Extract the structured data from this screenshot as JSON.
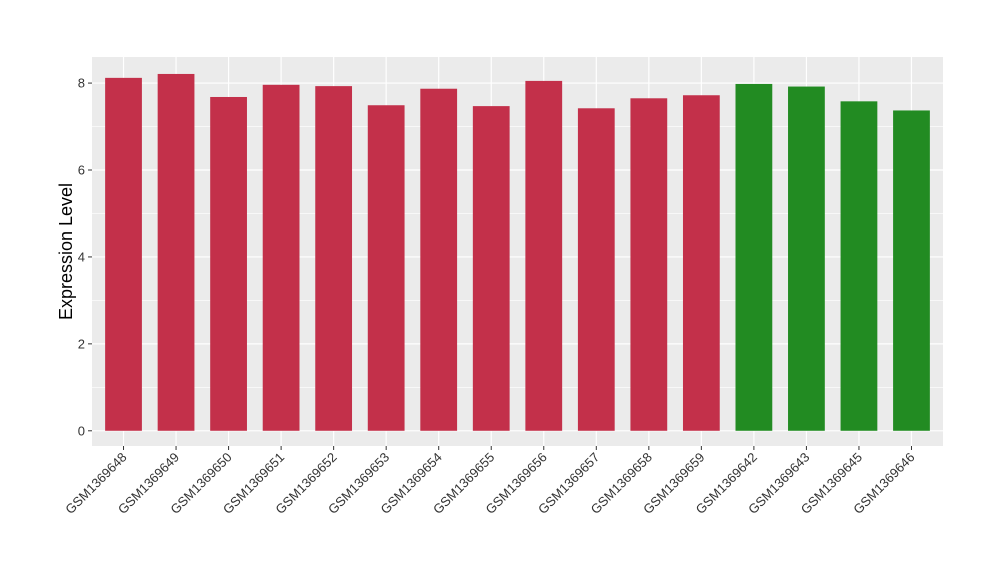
{
  "chart_data": {
    "type": "bar",
    "title": "",
    "xlabel": "",
    "ylabel": "Expression Level",
    "ylim": [
      -0.35,
      8.6
    ],
    "yticks": [
      0,
      2,
      4,
      6,
      8
    ],
    "grid": true,
    "panel_background": "#ebebeb",
    "grid_color": "#ffffff",
    "categories": [
      "GSM1369648",
      "GSM1369649",
      "GSM1369650",
      "GSM1369651",
      "GSM1369652",
      "GSM1369653",
      "GSM1369654",
      "GSM1369655",
      "GSM1369656",
      "GSM1369657",
      "GSM1369658",
      "GSM1369659",
      "GSM1369642",
      "GSM1369643",
      "GSM1369645",
      "GSM1369646"
    ],
    "values": [
      8.12,
      8.21,
      7.68,
      7.96,
      7.93,
      7.49,
      7.87,
      7.47,
      8.05,
      7.42,
      7.65,
      7.72,
      7.98,
      7.92,
      7.58,
      7.37
    ],
    "bar_colors": [
      "#c3304a",
      "#c3304a",
      "#c3304a",
      "#c3304a",
      "#c3304a",
      "#c3304a",
      "#c3304a",
      "#c3304a",
      "#c3304a",
      "#c3304a",
      "#c3304a",
      "#c3304a",
      "#228b22",
      "#228b22",
      "#228b22",
      "#228b22"
    ]
  }
}
